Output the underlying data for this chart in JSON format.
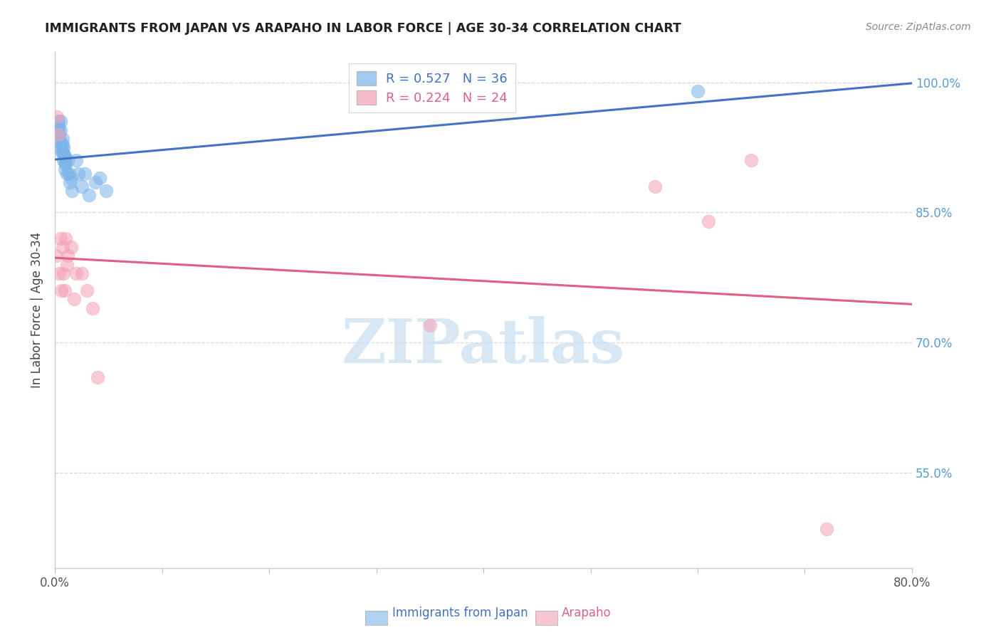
{
  "title": "IMMIGRANTS FROM JAPAN VS ARAPAHO IN LABOR FORCE | AGE 30-34 CORRELATION CHART",
  "source": "Source: ZipAtlas.com",
  "ylabel": "In Labor Force | Age 30-34",
  "xmin": 0.0,
  "xmax": 0.8,
  "ymin": 0.44,
  "ymax": 1.035,
  "yticks": [
    0.55,
    0.7,
    0.85,
    1.0
  ],
  "ytick_labels": [
    "55.0%",
    "70.0%",
    "85.0%",
    "100.0%"
  ],
  "xticks": [
    0.0,
    0.1,
    0.2,
    0.3,
    0.4,
    0.5,
    0.6,
    0.7,
    0.8
  ],
  "xtick_labels": [
    "0.0%",
    "",
    "",
    "",
    "",
    "",
    "",
    "",
    "80.0%"
  ],
  "japan_x": [
    0.003,
    0.003,
    0.003,
    0.004,
    0.004,
    0.005,
    0.005,
    0.006,
    0.006,
    0.006,
    0.007,
    0.007,
    0.007,
    0.008,
    0.008,
    0.008,
    0.009,
    0.009,
    0.009,
    0.01,
    0.01,
    0.011,
    0.012,
    0.013,
    0.014,
    0.015,
    0.016,
    0.02,
    0.022,
    0.025,
    0.028,
    0.032,
    0.038,
    0.042,
    0.048,
    0.6
  ],
  "japan_y": [
    0.955,
    0.95,
    0.945,
    0.94,
    0.935,
    0.955,
    0.945,
    0.93,
    0.925,
    0.92,
    0.935,
    0.928,
    0.92,
    0.925,
    0.918,
    0.91,
    0.915,
    0.908,
    0.9,
    0.912,
    0.905,
    0.895,
    0.91,
    0.895,
    0.885,
    0.89,
    0.875,
    0.91,
    0.895,
    0.88,
    0.895,
    0.87,
    0.885,
    0.89,
    0.875,
    0.99
  ],
  "arapaho_x": [
    0.001,
    0.002,
    0.003,
    0.004,
    0.005,
    0.006,
    0.007,
    0.008,
    0.009,
    0.01,
    0.011,
    0.012,
    0.015,
    0.018,
    0.02,
    0.025,
    0.03,
    0.035,
    0.04,
    0.35,
    0.56,
    0.61,
    0.65,
    0.72
  ],
  "arapaho_y": [
    0.8,
    0.96,
    0.94,
    0.78,
    0.82,
    0.76,
    0.81,
    0.78,
    0.76,
    0.82,
    0.79,
    0.8,
    0.81,
    0.75,
    0.78,
    0.78,
    0.76,
    0.74,
    0.66,
    0.72,
    0.88,
    0.84,
    0.91,
    0.485
  ],
  "japan_R": 0.527,
  "japan_N": 36,
  "arapaho_R": 0.224,
  "arapaho_N": 24,
  "blue_color": "#7ab4e8",
  "pink_color": "#f4a0b5",
  "blue_line_color": "#4472c4",
  "pink_line_color": "#e06080",
  "watermark_text": "ZIPatlas",
  "watermark_color": "#c8ddf0",
  "background_color": "#ffffff",
  "grid_color": "#d8d8d8",
  "title_color": "#222222",
  "ylabel_color": "#444444",
  "right_tick_color": "#5b9bd5",
  "source_color": "#888888"
}
